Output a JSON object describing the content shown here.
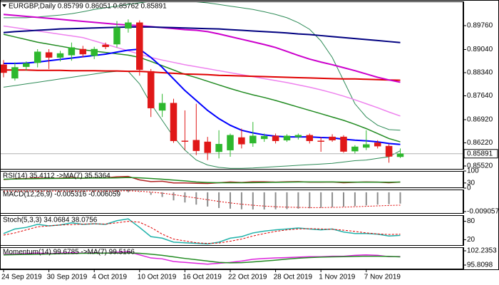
{
  "chart_data": [
    {
      "type": "candlestick",
      "title": "EURGBP,Daily  0.85799 0.86051 0.85762 0.85891",
      "categories": [
        "24 Sep 2019",
        null,
        null,
        null,
        "30 Sep 2019",
        null,
        null,
        null,
        "4 Oct 2019",
        null,
        null,
        null,
        "10 Oct 2019",
        null,
        null,
        null,
        "16 Oct 2019",
        null,
        null,
        null,
        "22 Oct 2019",
        null,
        null,
        null,
        "28 Oct 2019",
        null,
        null,
        null,
        "1 Nov 2019",
        null,
        null,
        null,
        "7 Nov 2019",
        null,
        null,
        null
      ],
      "open": [
        0.8858,
        0.8817,
        0.8852,
        0.8864,
        0.8895,
        0.888,
        0.8887,
        0.8905,
        0.8885,
        0.8918,
        0.892,
        0.8968,
        0.8985,
        0.8838,
        0.872,
        0.8742,
        0.8628,
        0.863,
        0.8625,
        0.8595,
        0.86,
        0.8638,
        0.8621,
        0.8634,
        0.8643,
        0.863,
        0.864,
        0.8645,
        0.8628,
        0.864,
        0.864,
        0.8597,
        0.8608,
        0.8622,
        0.8612,
        0.85799
      ],
      "high": [
        0.8872,
        0.8865,
        0.8868,
        0.8905,
        0.8905,
        0.89,
        0.8925,
        0.8915,
        0.8912,
        0.8925,
        0.899,
        0.8995,
        0.8992,
        0.8845,
        0.877,
        0.8755,
        0.872,
        0.874,
        0.864,
        0.866,
        0.865,
        0.8665,
        0.8685,
        0.865,
        0.865,
        0.8648,
        0.865,
        0.865,
        0.864,
        0.8648,
        0.8645,
        0.8615,
        0.866,
        0.863,
        0.8618,
        0.86051
      ],
      "low": [
        0.882,
        0.881,
        0.884,
        0.885,
        0.8845,
        0.8868,
        0.887,
        0.888,
        0.8875,
        0.8905,
        0.891,
        0.8955,
        0.8825,
        0.87,
        0.87,
        0.8622,
        0.86,
        0.8585,
        0.857,
        0.8575,
        0.858,
        0.8605,
        0.861,
        0.8625,
        0.862,
        0.8625,
        0.8632,
        0.862,
        0.8595,
        0.8625,
        0.8592,
        0.859,
        0.86,
        0.8605,
        0.8562,
        0.85762
      ],
      "close": [
        0.8834,
        0.885,
        0.8862,
        0.8897,
        0.888,
        0.8892,
        0.891,
        0.889,
        0.8905,
        0.8912,
        0.897,
        0.8985,
        0.8843,
        0.8727,
        0.8742,
        0.8628,
        0.8626,
        0.8598,
        0.8592,
        0.8618,
        0.8645,
        0.8618,
        0.8643,
        0.8642,
        0.8628,
        0.8643,
        0.8645,
        0.8628,
        0.8626,
        0.863,
        0.8596,
        0.861,
        0.8617,
        0.8612,
        0.8581,
        0.85891
      ],
      "up_color": "#2eb82e",
      "down_color": "#e01818",
      "series": [
        {
          "color": "#2e8b57",
          "width": 1,
          "values": [
            0.9,
            0.9,
            0.9,
            0.9002,
            0.9005,
            0.9008,
            0.9012,
            0.9018,
            0.9025,
            0.903,
            0.9035,
            0.904,
            0.9045,
            0.905,
            0.9052,
            0.9052,
            0.905,
            0.9048,
            0.9045,
            0.904,
            0.9035,
            0.903,
            0.9025,
            0.9018,
            0.901,
            0.9,
            0.8985,
            0.8965,
            0.893,
            0.888,
            0.881,
            0.874,
            0.87,
            0.8675,
            0.8662,
            0.866
          ]
        },
        {
          "color": "#2e8b57",
          "width": 1,
          "values": [
            0.879,
            0.8795,
            0.88,
            0.8805,
            0.881,
            0.8815,
            0.882,
            0.8825,
            0.883,
            0.8835,
            0.8838,
            0.8838,
            0.88,
            0.874,
            0.869,
            0.864,
            0.86,
            0.857,
            0.8555,
            0.8548,
            0.8545,
            0.8545,
            0.8546,
            0.8548,
            0.855,
            0.8552,
            0.8554,
            0.8556,
            0.8558,
            0.856,
            0.8564,
            0.8568,
            0.857,
            0.8575,
            0.858,
            0.8598
          ]
        },
        {
          "color": "#ee82ee",
          "width": 1.5,
          "values": [
            0.8975,
            0.897,
            0.8965,
            0.896,
            0.8955,
            0.895,
            0.8945,
            0.894,
            0.893,
            0.892,
            0.891,
            0.89,
            0.889,
            0.888,
            0.8872,
            0.8865,
            0.8858,
            0.8852,
            0.8846,
            0.884,
            0.8834,
            0.8828,
            0.8822,
            0.8816,
            0.881,
            0.8804,
            0.8797,
            0.879,
            0.8782,
            0.8773,
            0.8763,
            0.8752,
            0.874,
            0.8728,
            0.8715,
            0.8703
          ]
        },
        {
          "color": "#228b22",
          "width": 1.5,
          "values": [
            0.895,
            0.8942,
            0.8934,
            0.8926,
            0.892,
            0.8914,
            0.8908,
            0.8903,
            0.8899,
            0.8895,
            0.8891,
            0.8887,
            0.888,
            0.8868,
            0.8855,
            0.8842,
            0.8829,
            0.8819,
            0.8808,
            0.8797,
            0.8786,
            0.8776,
            0.8767,
            0.8759,
            0.875,
            0.874,
            0.873,
            0.872,
            0.871,
            0.87,
            0.869,
            0.8678,
            0.8665,
            0.865,
            0.8635,
            0.8625
          ]
        },
        {
          "color": "#e00000",
          "width": 2,
          "values": [
            0.8842,
            0.8842,
            0.8842,
            0.8841,
            0.8841,
            0.8841,
            0.884,
            0.884,
            0.884,
            0.8839,
            0.8839,
            0.8838,
            0.8838,
            0.8836,
            0.8834,
            0.8832,
            0.883,
            0.8829,
            0.8828,
            0.8826,
            0.8825,
            0.8824,
            0.8823,
            0.8822,
            0.8821,
            0.882,
            0.8819,
            0.8818,
            0.8817,
            0.8816,
            0.8815,
            0.8815,
            0.8814,
            0.8813,
            0.8812,
            0.8811
          ]
        },
        {
          "color": "#cc00cc",
          "width": 2,
          "values": [
            0.901,
            0.9007,
            0.9004,
            0.9001,
            0.8998,
            0.8995,
            0.8992,
            0.8989,
            0.8986,
            0.8983,
            0.898,
            0.8978,
            0.8976,
            0.8973,
            0.897,
            0.8967,
            0.8964,
            0.8962,
            0.8958,
            0.8951,
            0.8943,
            0.8935,
            0.8927,
            0.8919,
            0.891,
            0.8898,
            0.8886,
            0.8875,
            0.8866,
            0.8858,
            0.8849,
            0.884,
            0.883,
            0.882,
            0.8812,
            0.8805
          ]
        },
        {
          "color": "#000080",
          "width": 2,
          "values": [
            0.8955,
            0.8958,
            0.896,
            0.8962,
            0.8964,
            0.8966,
            0.8967,
            0.8968,
            0.8969,
            0.897,
            0.8971,
            0.8972,
            0.8972,
            0.8972,
            0.8971,
            0.897,
            0.8969,
            0.8968,
            0.8967,
            0.8966,
            0.8964,
            0.8962,
            0.896,
            0.8958,
            0.8956,
            0.8954,
            0.8951,
            0.8949,
            0.8946,
            0.8943,
            0.894,
            0.8937,
            0.8934,
            0.8931,
            0.8928,
            0.8925
          ]
        },
        {
          "color": "#0000ff",
          "width": 2,
          "values": [
            0.8862,
            0.8862,
            0.8863,
            0.8866,
            0.887,
            0.8874,
            0.8878,
            0.8882,
            0.8886,
            0.889,
            0.8896,
            0.8902,
            0.8905,
            0.888,
            0.885,
            0.8815,
            0.878,
            0.875,
            0.872,
            0.8695,
            0.8675,
            0.866,
            0.8652,
            0.8646,
            0.8642,
            0.864,
            0.864,
            0.864,
            0.8638,
            0.8637,
            0.8633,
            0.863,
            0.8628,
            0.8625,
            0.862,
            0.8617
          ]
        }
      ],
      "current_price": 0.85891,
      "ylim": [
        0.85412,
        0.90492
      ],
      "yticks": [
        {
          "value": 0.8976,
          "label": "0.89760"
        },
        {
          "value": 0.8904,
          "label": "0.89040"
        },
        {
          "value": 0.8834,
          "label": "0.88340"
        },
        {
          "value": 0.8764,
          "label": "0.87640"
        },
        {
          "value": 0.8692,
          "label": "0.86920"
        },
        {
          "value": 0.8622,
          "label": "0.86220"
        },
        {
          "value": 0.8552,
          "label": "0.85520"
        }
      ]
    },
    {
      "type": "line",
      "title": "RSI(14) 35.4112 ->MA(7) 35.5364",
      "ylim": [
        0,
        100
      ],
      "yticks": [
        100,
        30,
        0
      ],
      "series": [
        {
          "color": "#b22222",
          "width": 1.5,
          "values": [
            50,
            55,
            56,
            60,
            57,
            59,
            62,
            58,
            61,
            60,
            66,
            68,
            48,
            38,
            40,
            30,
            30,
            28,
            27,
            31,
            36,
            33,
            37,
            37,
            35,
            37,
            38,
            35,
            35,
            36,
            31,
            34,
            36,
            35,
            31,
            35.4112
          ]
        },
        {
          "color": "#228b22",
          "width": 1.5,
          "values": [
            52,
            53,
            54,
            55,
            56,
            57,
            58,
            58,
            59,
            59,
            60,
            62,
            60,
            56,
            52,
            47,
            42,
            36,
            33,
            31,
            31,
            31,
            32,
            33,
            34,
            35,
            36,
            36,
            36,
            36,
            35,
            35,
            35,
            35,
            34.5,
            35.5364
          ]
        }
      ]
    },
    {
      "type": "macd",
      "title": "MACD(12,26,9) -0.005316 -0.006059",
      "ylim": [
        -0.0101,
        0.0013
      ],
      "yticks": [
        {
          "value": -0.009057,
          "label": "-0.009057"
        }
      ],
      "color": "#8c8c8c",
      "signal_color": "#e00000",
      "values": [
        0.0004,
        0.0004,
        0.0005,
        0.0006,
        0.0006,
        0.0006,
        0.0007,
        0.0007,
        0.0008,
        0.0008,
        0.001,
        0.0012,
        0.0002,
        -0.0012,
        -0.0022,
        -0.0038,
        -0.0048,
        -0.0058,
        -0.0067,
        -0.0074,
        -0.0077,
        -0.008,
        -0.0081,
        -0.0081,
        -0.008,
        -0.0079,
        -0.0077,
        -0.0075,
        -0.0073,
        -0.007,
        -0.0068,
        -0.0065,
        -0.0062,
        -0.0058,
        -0.0056,
        -0.005316
      ],
      "signal": [
        0.0006,
        0.0006,
        0.0006,
        0.0006,
        0.0006,
        0.0006,
        0.0006,
        0.0006,
        0.0006,
        0.0006,
        0.0006,
        0.0007,
        0.0005,
        0.0001,
        -0.0004,
        -0.0011,
        -0.0019,
        -0.0027,
        -0.0035,
        -0.0043,
        -0.005,
        -0.0056,
        -0.0061,
        -0.0065,
        -0.0068,
        -0.007,
        -0.0071,
        -0.0072,
        -0.0072,
        -0.0071,
        -0.007,
        -0.0068,
        -0.0066,
        -0.0064,
        -0.0062,
        -0.006059
      ]
    },
    {
      "type": "line",
      "title": "Stoch(5,3,3) 34.0684 38.0756",
      "ylim": [
        0,
        100
      ],
      "yticks": [
        80,
        20
      ],
      "series": [
        {
          "color": "#20b2aa",
          "width": 1.5,
          "values": [
            40,
            55,
            60,
            70,
            65,
            68,
            75,
            70,
            72,
            70,
            82,
            88,
            60,
            30,
            25,
            12,
            10,
            8,
            6,
            12,
            25,
            30,
            42,
            48,
            52,
            55,
            58,
            55,
            52,
            55,
            45,
            40,
            40,
            38,
            32,
            34.0684
          ]
        },
        {
          "color": "#e00000",
          "width": 1,
          "dash": true,
          "values": [
            35,
            42,
            52,
            62,
            65,
            68,
            69,
            71,
            72,
            71,
            75,
            80,
            77,
            60,
            38,
            22,
            16,
            10,
            8,
            9,
            15,
            22,
            32,
            40,
            47,
            52,
            55,
            56,
            55,
            54,
            51,
            47,
            42,
            39,
            37,
            38.0756
          ]
        }
      ]
    },
    {
      "type": "line",
      "title": "Momentum(14) 99.6785 ->MA(7) 99.5166",
      "ylim": [
        93.88,
        103.84
      ],
      "yticks": [
        102.2353,
        95.8098
      ],
      "series": [
        {
          "color": "#dd22dd",
          "width": 1.5,
          "values": [
            100.6,
            100.8,
            101.0,
            101.2,
            101.0,
            101.2,
            101.4,
            101.2,
            101.3,
            101.2,
            101.6,
            101.8,
            100.4,
            99.0,
            98.6,
            97.4,
            97.0,
            96.6,
            96.2,
            96.6,
            97.0,
            97.6,
            98.4,
            98.8,
            99.0,
            99.2,
            99.4,
            99.6,
            99.6,
            99.8,
            99.8,
            100.2,
            100.4,
            100.2,
            99.6,
            99.6785
          ]
        },
        {
          "color": "#228b22",
          "width": 1.5,
          "values": [
            100.4,
            100.5,
            100.6,
            100.7,
            100.8,
            100.9,
            101.0,
            101.1,
            101.1,
            101.2,
            101.2,
            101.3,
            101.1,
            100.7,
            100.2,
            99.5,
            98.8,
            98.2,
            97.6,
            97.0,
            96.8,
            96.9,
            97.2,
            97.6,
            98.0,
            98.5,
            98.9,
            99.2,
            99.4,
            99.5,
            99.6,
            99.7,
            99.8,
            99.8,
            99.7,
            99.5166
          ]
        }
      ]
    }
  ]
}
